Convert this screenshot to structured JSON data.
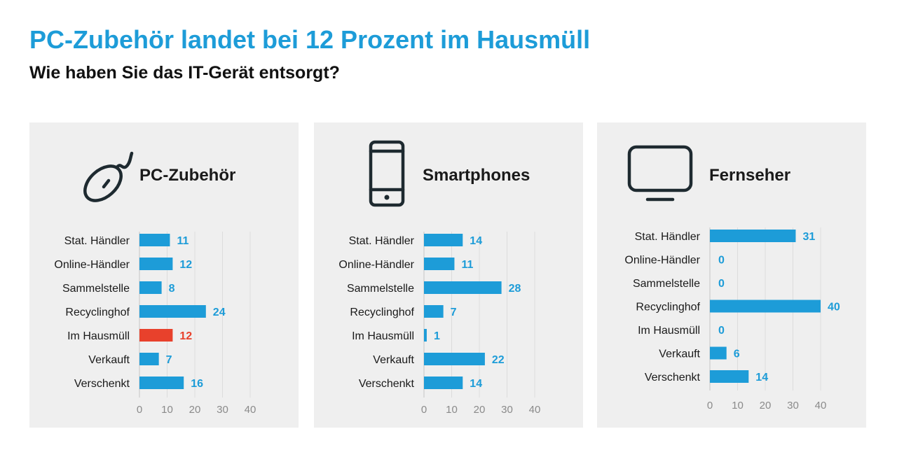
{
  "title": "PC-Zubehör landet bei 12 Prozent im Hausmüll",
  "subtitle": "Wie haben Sie das IT-Gerät entsorgt?",
  "colors": {
    "title": "#1d9cd8",
    "bar": "#1d9cd8",
    "highlight": "#e8412c",
    "panel_bg": "#efefef",
    "icon": "#1e2a30"
  },
  "chart_data": [
    {
      "type": "bar",
      "orientation": "horizontal",
      "title": "PC-Zubehör",
      "icon": "computer-mouse-icon",
      "categories": [
        "Stat. Händler",
        "Online-Händler",
        "Sammelstelle",
        "Recyclinghof",
        "Im Hausmüll",
        "Verkauft",
        "Verschenkt"
      ],
      "values": [
        11,
        12,
        8,
        24,
        12,
        7,
        16
      ],
      "highlight_category": "Im Hausmüll",
      "xticks": [
        0,
        10,
        20,
        30,
        40
      ],
      "xlim": [
        0,
        40
      ],
      "grid": true
    },
    {
      "type": "bar",
      "orientation": "horizontal",
      "title": "Smartphones",
      "icon": "smartphone-icon",
      "categories": [
        "Stat. Händler",
        "Online-Händler",
        "Sammelstelle",
        "Recyclinghof",
        "Im Hausmüll",
        "Verkauft",
        "Verschenkt"
      ],
      "values": [
        14,
        11,
        28,
        7,
        1,
        22,
        14
      ],
      "xticks": [
        0,
        10,
        20,
        30,
        40
      ],
      "xlim": [
        0,
        40
      ],
      "grid": true
    },
    {
      "type": "bar",
      "orientation": "horizontal",
      "title": "Fernseher",
      "icon": "television-icon",
      "categories": [
        "Stat. Händler",
        "Online-Händler",
        "Sammelstelle",
        "Recyclinghof",
        "Im Hausmüll",
        "Verkauft",
        "Verschenkt"
      ],
      "values": [
        31,
        0,
        0,
        40,
        0,
        6,
        14
      ],
      "xticks": [
        0,
        10,
        20,
        30,
        40
      ],
      "xlim": [
        0,
        40
      ],
      "grid": true
    }
  ]
}
